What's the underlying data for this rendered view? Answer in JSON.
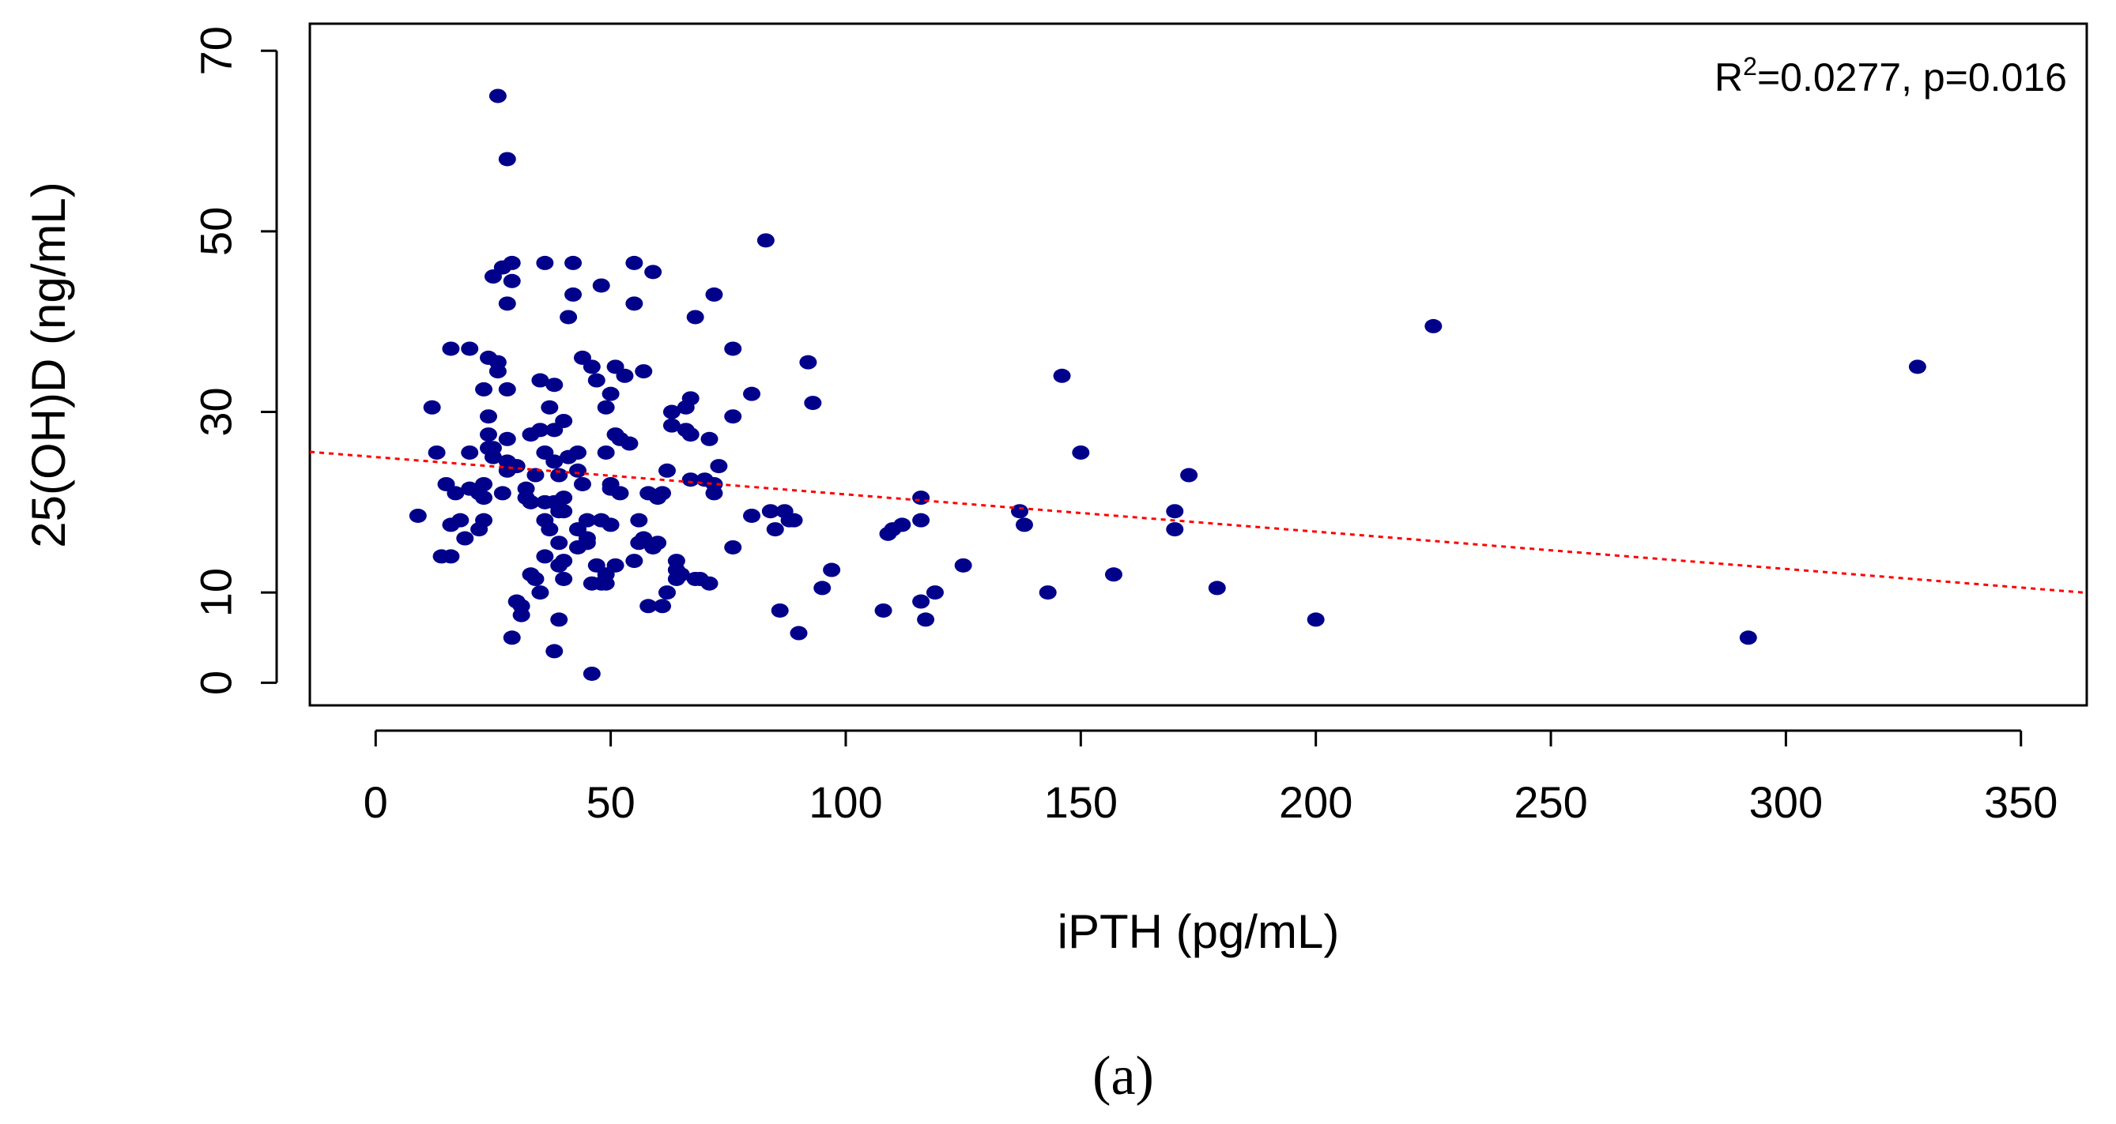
{
  "chart_data": {
    "type": "scatter",
    "xlabel": "iPTH (pg/mL)",
    "ylabel": "25(OH)D (ng/mL)",
    "xlim": [
      -14,
      364
    ],
    "ylim": [
      -2.5,
      73
    ],
    "xticks": [
      0,
      50,
      100,
      150,
      200,
      250,
      300,
      350
    ],
    "yticks": [
      0,
      10,
      30,
      50,
      70
    ],
    "annotation_main": "R",
    "annotation_sup": "2",
    "annotation_rest": "=0.0277, p=0.016",
    "panel_label": "(a)",
    "point_color": "#00008B",
    "regression_color": "#FF0000",
    "regression": {
      "intercept": 25.0,
      "slope": -0.0413
    },
    "points": [
      [
        9,
        18.5
      ],
      [
        12,
        30.5
      ],
      [
        13,
        25.5
      ],
      [
        14,
        14
      ],
      [
        15,
        22
      ],
      [
        16,
        37
      ],
      [
        16,
        14
      ],
      [
        16,
        17.5
      ],
      [
        17,
        21
      ],
      [
        18,
        18
      ],
      [
        19,
        16
      ],
      [
        20,
        37
      ],
      [
        20,
        25.5
      ],
      [
        20,
        21.5
      ],
      [
        22,
        17
      ],
      [
        22,
        21
      ],
      [
        23,
        32.5
      ],
      [
        23,
        20.5
      ],
      [
        23,
        18
      ],
      [
        23,
        22
      ],
      [
        24,
        36
      ],
      [
        24,
        26
      ],
      [
        24,
        27.5
      ],
      [
        24,
        29.5
      ],
      [
        25,
        26
      ],
      [
        25,
        25
      ],
      [
        25,
        45
      ],
      [
        26,
        65
      ],
      [
        26,
        35.5
      ],
      [
        26,
        34.5
      ],
      [
        27,
        21
      ],
      [
        27,
        46
      ],
      [
        28,
        58
      ],
      [
        28,
        42
      ],
      [
        28,
        32.5
      ],
      [
        28,
        23.5
      ],
      [
        28,
        24.5
      ],
      [
        28,
        27
      ],
      [
        29,
        44.5
      ],
      [
        29,
        46.5
      ],
      [
        29,
        5
      ],
      [
        30,
        9
      ],
      [
        30,
        24
      ],
      [
        31,
        7.5
      ],
      [
        31,
        8.5
      ],
      [
        32,
        20.5
      ],
      [
        32,
        21.5
      ],
      [
        33,
        20
      ],
      [
        33,
        12
      ],
      [
        33,
        27.5
      ],
      [
        34,
        23
      ],
      [
        34,
        11.5
      ],
      [
        35,
        10
      ],
      [
        35,
        33.5
      ],
      [
        35,
        28
      ],
      [
        36,
        25.5
      ],
      [
        36,
        18
      ],
      [
        36,
        14
      ],
      [
        36,
        20
      ],
      [
        36,
        46.5
      ],
      [
        37,
        17
      ],
      [
        37,
        30.5
      ],
      [
        38,
        3.5
      ],
      [
        38,
        33
      ],
      [
        38,
        24.5
      ],
      [
        38,
        20
      ],
      [
        38,
        28
      ],
      [
        39,
        23
      ],
      [
        39,
        15.5
      ],
      [
        39,
        19
      ],
      [
        39,
        13
      ],
      [
        39,
        7
      ],
      [
        40,
        20.5
      ],
      [
        40,
        13.5
      ],
      [
        40,
        11.5
      ],
      [
        40,
        19
      ],
      [
        40,
        29
      ],
      [
        41,
        40.5
      ],
      [
        41,
        25
      ],
      [
        42,
        43
      ],
      [
        42,
        46.5
      ],
      [
        43,
        23.5
      ],
      [
        43,
        25.5
      ],
      [
        43,
        17
      ],
      [
        43,
        15
      ],
      [
        44,
        36
      ],
      [
        44,
        22
      ],
      [
        45,
        15.5
      ],
      [
        45,
        18
      ],
      [
        45,
        16
      ],
      [
        46,
        11
      ],
      [
        46,
        35
      ],
      [
        46,
        1
      ],
      [
        47,
        33.5
      ],
      [
        47,
        13
      ],
      [
        48,
        44
      ],
      [
        48,
        18
      ],
      [
        48,
        11
      ],
      [
        49,
        30.5
      ],
      [
        49,
        25.5
      ],
      [
        49,
        12
      ],
      [
        49,
        11
      ],
      [
        50,
        32
      ],
      [
        50,
        21.5
      ],
      [
        50,
        22
      ],
      [
        50,
        17.5
      ],
      [
        51,
        35
      ],
      [
        51,
        27.5
      ],
      [
        51,
        13
      ],
      [
        52,
        27
      ],
      [
        52,
        21
      ],
      [
        53,
        34
      ],
      [
        54,
        26.5
      ],
      [
        55,
        13.5
      ],
      [
        55,
        46.5
      ],
      [
        55,
        42
      ],
      [
        56,
        15.5
      ],
      [
        56,
        18
      ],
      [
        57,
        16
      ],
      [
        57,
        34.5
      ],
      [
        58,
        21
      ],
      [
        58,
        8.5
      ],
      [
        59,
        15
      ],
      [
        59,
        45.5
      ],
      [
        60,
        20.5
      ],
      [
        60,
        15.5
      ],
      [
        61,
        21
      ],
      [
        61,
        8.5
      ],
      [
        62,
        10
      ],
      [
        62,
        23.5
      ],
      [
        63,
        30
      ],
      [
        63,
        28.5
      ],
      [
        64,
        12.5
      ],
      [
        64,
        11.5
      ],
      [
        64,
        13.5
      ],
      [
        65,
        12
      ],
      [
        66,
        28
      ],
      [
        66,
        30.5
      ],
      [
        67,
        27.5
      ],
      [
        67,
        22.5
      ],
      [
        67,
        31.5
      ],
      [
        68,
        40.5
      ],
      [
        68,
        11.5
      ],
      [
        69,
        11.5
      ],
      [
        70,
        22.5
      ],
      [
        71,
        27
      ],
      [
        71,
        11
      ],
      [
        72,
        21
      ],
      [
        72,
        43
      ],
      [
        72,
        22
      ],
      [
        73,
        24
      ],
      [
        76,
        37
      ],
      [
        76,
        29.5
      ],
      [
        76,
        15
      ],
      [
        80,
        18.5
      ],
      [
        80,
        32
      ],
      [
        83,
        49
      ],
      [
        84,
        19
      ],
      [
        85,
        17
      ],
      [
        86,
        8
      ],
      [
        87,
        19
      ],
      [
        88,
        18
      ],
      [
        89,
        18
      ],
      [
        90,
        5.5
      ],
      [
        92,
        35.5
      ],
      [
        93,
        31
      ],
      [
        95,
        10.5
      ],
      [
        97,
        12.5
      ],
      [
        108,
        8
      ],
      [
        109,
        16.5
      ],
      [
        110,
        17
      ],
      [
        112,
        17.5
      ],
      [
        116,
        20.5
      ],
      [
        116,
        18
      ],
      [
        116,
        9
      ],
      [
        117,
        7
      ],
      [
        119,
        10
      ],
      [
        125,
        13
      ],
      [
        137,
        19
      ],
      [
        138,
        17.5
      ],
      [
        143,
        10
      ],
      [
        146,
        34
      ],
      [
        150,
        25.5
      ],
      [
        157,
        12
      ],
      [
        170,
        19
      ],
      [
        170,
        17
      ],
      [
        173,
        23
      ],
      [
        179,
        10.5
      ],
      [
        200,
        7
      ],
      [
        225,
        39.5
      ],
      [
        292,
        5
      ],
      [
        328,
        35
      ]
    ]
  }
}
